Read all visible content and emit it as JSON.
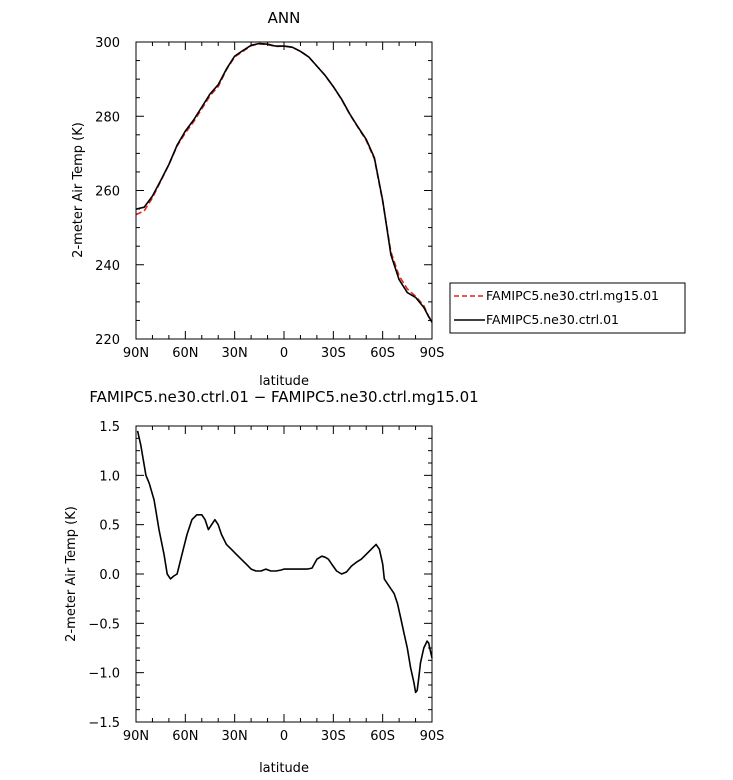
{
  "chart_data": [
    {
      "type": "line",
      "title": "ANN",
      "xlabel": "latitude",
      "ylabel": "2-meter Air Temp (K)",
      "xlim": [
        90,
        -90
      ],
      "ylim": [
        220,
        300
      ],
      "xticks": [
        90,
        60,
        30,
        0,
        -30,
        -60,
        -90
      ],
      "xtick_labels": [
        "90N",
        "60N",
        "30N",
        "0",
        "30S",
        "60S",
        "90S"
      ],
      "yticks": [
        220,
        240,
        260,
        280,
        300
      ],
      "ytick_labels": [
        "220",
        "240",
        "260",
        "280",
        "300"
      ],
      "grid": false,
      "legend": "right",
      "series": [
        {
          "name": "FAMIPC5.ne30.ctrl.mg15.01",
          "color": "#e0261e",
          "dash": "dashed",
          "x": [
            90,
            85,
            80,
            75,
            70,
            65,
            60,
            55,
            50,
            45,
            40,
            35,
            30,
            25,
            20,
            15,
            10,
            5,
            0,
            -5,
            -10,
            -15,
            -20,
            -25,
            -30,
            -35,
            -40,
            -45,
            -50,
            -55,
            -60,
            -65,
            -70,
            -75,
            -80,
            -85,
            -88,
            -90
          ],
          "y": [
            253.5,
            254.5,
            258,
            262.5,
            267,
            272,
            275.5,
            278.5,
            282,
            285.5,
            288,
            292.5,
            296,
            297.5,
            299,
            299.5,
            299.3,
            298.8,
            298.9,
            298.6,
            297.5,
            296,
            293.5,
            291,
            288,
            284.5,
            280.5,
            277,
            273.5,
            268.5,
            257,
            243.5,
            237,
            233.5,
            231.5,
            229,
            226,
            225
          ]
        },
        {
          "name": "FAMIPC5.ne30.ctrl.01",
          "color": "#000000",
          "dash": "solid",
          "x": [
            90,
            85,
            80,
            75,
            70,
            65,
            60,
            55,
            50,
            45,
            40,
            35,
            30,
            25,
            20,
            15,
            10,
            5,
            0,
            -5,
            -10,
            -15,
            -20,
            -25,
            -30,
            -35,
            -40,
            -45,
            -50,
            -55,
            -60,
            -65,
            -70,
            -75,
            -80,
            -85,
            -88,
            -90
          ],
          "y": [
            255,
            255.5,
            258.5,
            262.7,
            267,
            272.2,
            276,
            279,
            282.5,
            286,
            288.5,
            292.7,
            296.2,
            297.7,
            299.1,
            299.6,
            299.4,
            298.9,
            298.9,
            298.6,
            297.5,
            296,
            293.5,
            291,
            288,
            284.6,
            280.6,
            277.1,
            273.8,
            268.8,
            257.3,
            242.7,
            236,
            232.5,
            231.2,
            228.5,
            226,
            224.5
          ]
        }
      ]
    },
    {
      "type": "line",
      "title": "FAMIPC5.ne30.ctrl.01 − FAMIPC5.ne30.ctrl.mg15.01",
      "xlabel": "latitude",
      "ylabel": "2-meter Air Temp (K)",
      "xlim": [
        90,
        -90
      ],
      "ylim": [
        -1.5,
        1.5
      ],
      "xticks": [
        90,
        60,
        30,
        0,
        -30,
        -60,
        -90
      ],
      "xtick_labels": [
        "90N",
        "60N",
        "30N",
        "0",
        "30S",
        "60S",
        "90S"
      ],
      "yticks": [
        -1.5,
        -1.0,
        -0.5,
        0.0,
        0.5,
        1.0,
        1.5
      ],
      "ytick_labels": [
        "−1.5",
        "−1.0",
        "−0.5",
        "0.0",
        "0.5",
        "1.0",
        "1.5"
      ],
      "grid": false,
      "series": [
        {
          "color": "#000000",
          "x": [
            89,
            87,
            84,
            82,
            79,
            76,
            73,
            71,
            69,
            67,
            65,
            62,
            59,
            56,
            53,
            50,
            48,
            46,
            44,
            42,
            40,
            38,
            35,
            32,
            29,
            26,
            23,
            20,
            17,
            14,
            11,
            8,
            5,
            2,
            0,
            -2,
            -5,
            -8,
            -11,
            -14,
            -17,
            -20,
            -23,
            -25,
            -27,
            -29,
            -32,
            -35,
            -38,
            -41,
            -44,
            -47,
            -50,
            -53,
            -56,
            -58,
            -60,
            -61,
            -63,
            -65,
            -67,
            -69,
            -71,
            -73,
            -75,
            -77,
            -79,
            -80,
            -81,
            -82,
            -83,
            -85,
            -87,
            -88,
            -89,
            -90
          ],
          "y": [
            1.45,
            1.3,
            1.0,
            0.92,
            0.75,
            0.45,
            0.2,
            0.0,
            -0.05,
            -0.02,
            0.0,
            0.2,
            0.4,
            0.55,
            0.6,
            0.6,
            0.55,
            0.45,
            0.5,
            0.55,
            0.5,
            0.4,
            0.3,
            0.25,
            0.2,
            0.15,
            0.1,
            0.05,
            0.03,
            0.03,
            0.05,
            0.03,
            0.03,
            0.04,
            0.05,
            0.05,
            0.05,
            0.05,
            0.05,
            0.05,
            0.06,
            0.15,
            0.18,
            0.17,
            0.15,
            0.1,
            0.03,
            0.0,
            0.02,
            0.08,
            0.12,
            0.15,
            0.2,
            0.25,
            0.3,
            0.25,
            0.1,
            -0.05,
            -0.1,
            -0.15,
            -0.2,
            -0.3,
            -0.45,
            -0.6,
            -0.75,
            -0.95,
            -1.1,
            -1.2,
            -1.18,
            -1.05,
            -0.9,
            -0.75,
            -0.68,
            -0.7,
            -0.78,
            -0.85
          ]
        }
      ]
    }
  ]
}
